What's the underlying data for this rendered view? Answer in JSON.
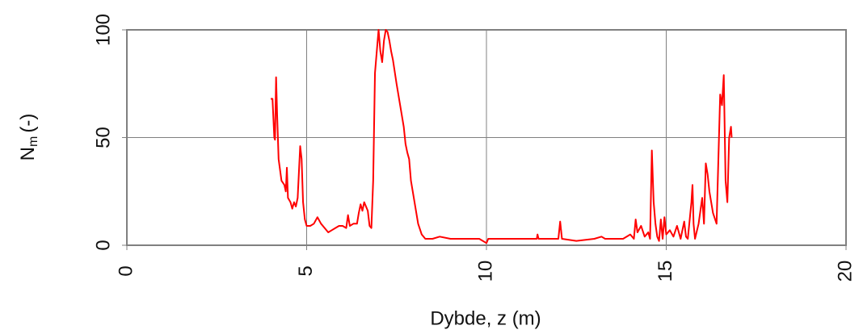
{
  "chart_data": {
    "type": "line",
    "x_label": "Dybde, z (m)",
    "y_label": "N",
    "y_label_sub": "m",
    "y_label_unit": "(-)",
    "xlim": [
      0,
      20
    ],
    "xticks": [
      0,
      5,
      10,
      15,
      20
    ],
    "ylim": [
      0,
      100
    ],
    "yticks": [
      0,
      50,
      100
    ],
    "grid": true,
    "series": [
      {
        "color": "#ff0000",
        "x": [
          4.0,
          4.05,
          4.1,
          4.12,
          4.15,
          4.18,
          4.22,
          4.3,
          4.38,
          4.42,
          4.45,
          4.48,
          4.55,
          4.6,
          4.65,
          4.7,
          4.75,
          4.82,
          4.86,
          4.9,
          4.95,
          5.0,
          5.1,
          5.2,
          5.3,
          5.4,
          5.5,
          5.6,
          5.7,
          5.8,
          5.9,
          6.0,
          6.1,
          6.15,
          6.2,
          6.3,
          6.4,
          6.45,
          6.5,
          6.55,
          6.6,
          6.65,
          6.7,
          6.75,
          6.8,
          6.85,
          6.9,
          6.95,
          7.0,
          7.05,
          7.1,
          7.15,
          7.2,
          7.25,
          7.3,
          7.35,
          7.4,
          7.5,
          7.6,
          7.7,
          7.75,
          7.8,
          7.85,
          7.9,
          8.0,
          8.1,
          8.2,
          8.3,
          8.5,
          8.7,
          9.0,
          9.5,
          9.8,
          10.0,
          10.05,
          10.5,
          11.0,
          11.4,
          11.42,
          11.45,
          12.0,
          12.05,
          12.1,
          12.5,
          13.0,
          13.2,
          13.3,
          13.8,
          14.0,
          14.1,
          14.15,
          14.2,
          14.3,
          14.4,
          14.5,
          14.55,
          14.6,
          14.65,
          14.7,
          14.75,
          14.8,
          14.85,
          14.9,
          14.95,
          15.0,
          15.1,
          15.2,
          15.3,
          15.4,
          15.5,
          15.55,
          15.6,
          15.7,
          15.73,
          15.76,
          15.8,
          15.9,
          16.0,
          16.05,
          16.1,
          16.15,
          16.2,
          16.3,
          16.4,
          16.45,
          16.5,
          16.55,
          16.6,
          16.65,
          16.7,
          16.75,
          16.8,
          16.82
        ],
        "values": [
          68,
          68,
          50,
          49,
          78,
          60,
          40,
          30,
          28,
          25,
          36,
          22,
          20,
          17,
          20,
          18,
          22,
          46,
          40,
          20,
          12,
          9,
          9,
          10,
          13,
          10,
          8,
          6,
          7,
          8,
          9,
          9,
          8,
          14,
          9,
          10,
          10,
          15,
          19,
          16,
          20,
          18,
          16,
          9,
          8,
          30,
          80,
          90,
          100,
          90,
          85,
          95,
          100,
          99,
          95,
          90,
          86,
          75,
          65,
          55,
          47,
          43,
          40,
          30,
          20,
          10,
          5,
          3,
          3,
          4,
          3,
          3,
          3,
          1,
          3,
          3,
          3,
          3,
          5,
          3,
          3,
          11,
          3,
          2,
          3,
          4,
          3,
          3,
          5,
          3,
          12,
          6,
          9,
          4,
          6,
          3,
          44,
          20,
          10,
          4,
          2,
          12,
          3,
          13,
          5,
          7,
          4,
          9,
          3,
          11,
          4,
          3,
          20,
          28,
          10,
          3,
          10,
          22,
          10,
          38,
          33,
          25,
          15,
          10,
          40,
          70,
          65,
          79,
          30,
          20,
          50,
          55,
          50
        ]
      }
    ]
  }
}
